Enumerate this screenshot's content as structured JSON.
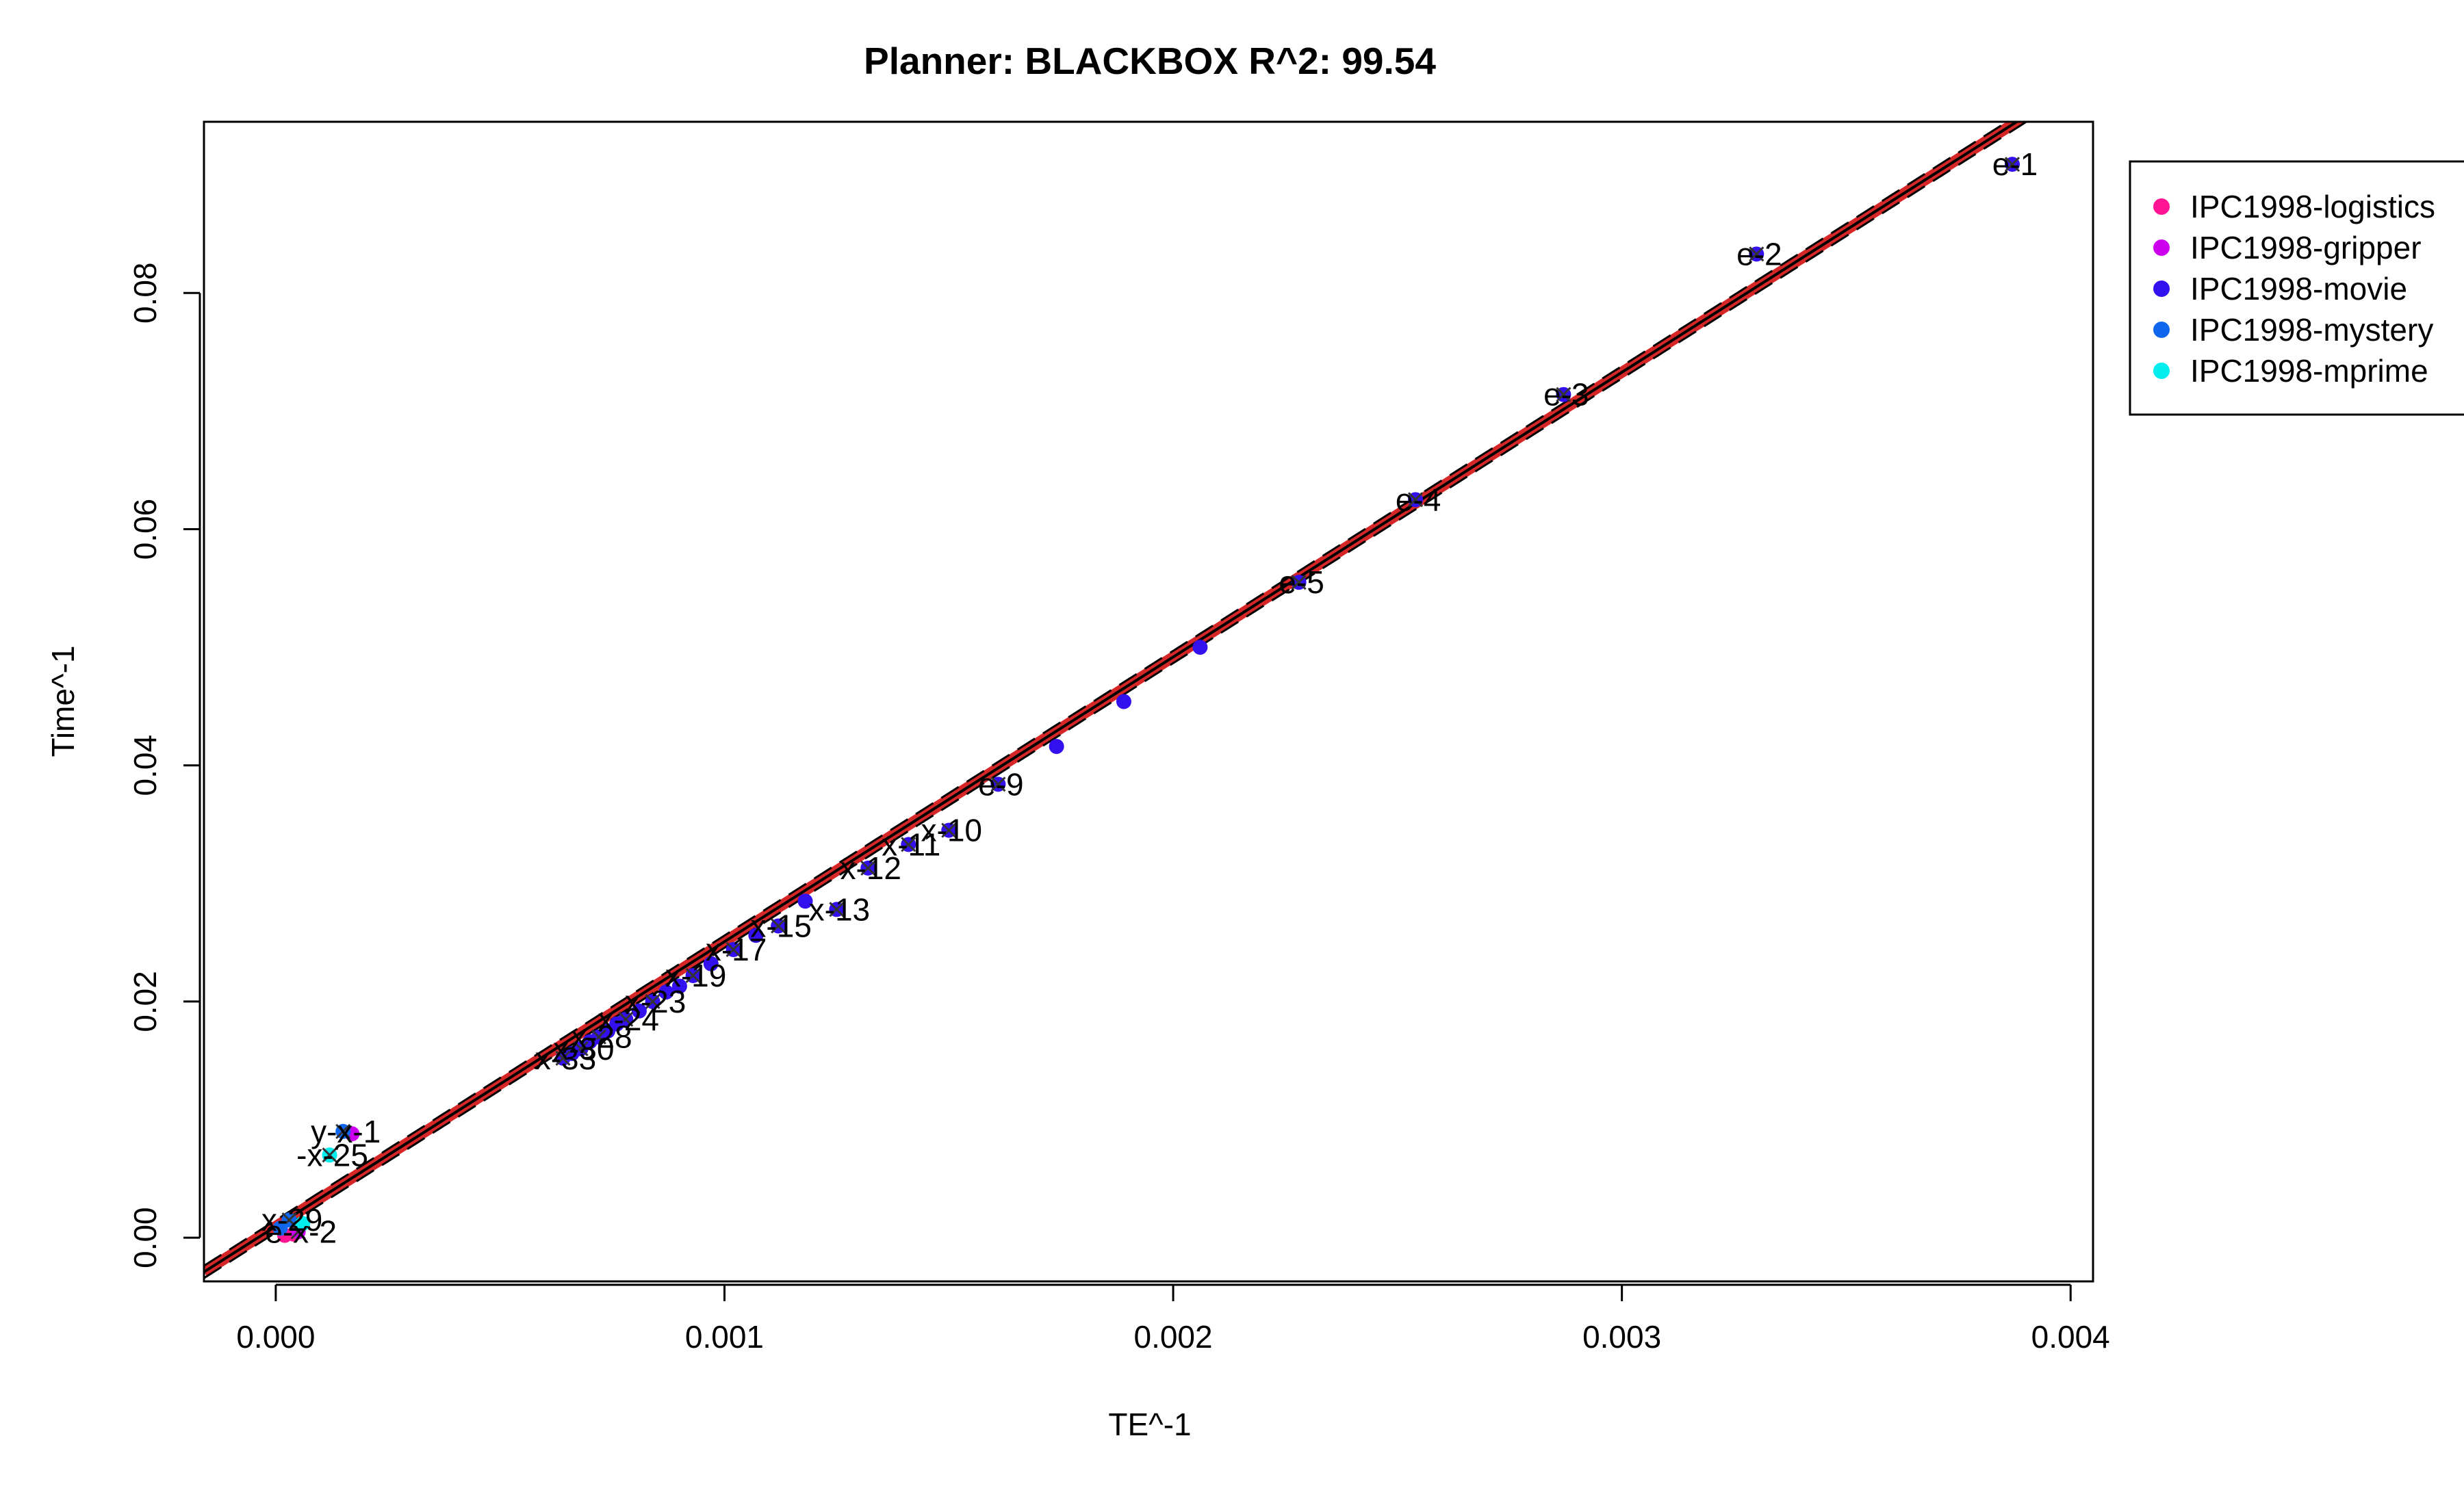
{
  "chart_data": {
    "type": "scatter",
    "title": "Planner: BLACKBOX R^2: 99.54",
    "xlabel": "TE^-1",
    "ylabel": "Time^-1",
    "xlim": [
      -0.00016,
      0.00405
    ],
    "ylim": [
      -0.0037,
      0.0945
    ],
    "xticks": [
      0.0,
      0.001,
      0.002,
      0.003,
      0.004
    ],
    "xtick_labels": [
      "0.000",
      "0.001",
      "0.002",
      "0.003",
      "0.004"
    ],
    "yticks": [
      0.0,
      0.02,
      0.04,
      0.06,
      0.08
    ],
    "ytick_labels": [
      "0.00",
      "0.02",
      "0.04",
      "0.06",
      "0.08"
    ],
    "legend_position": "top-right (outside plot)",
    "fit_line": {
      "x": [
        -0.00016,
        0.00405
      ],
      "y": [
        -0.0029,
        0.0986
      ],
      "band_color": "#d62728",
      "line_color": "#000000"
    },
    "series": [
      {
        "name": "IPC1998-logistics",
        "color": "#ff1493",
        "points": [
          {
            "x": 2e-05,
            "y": 0.0002,
            "label": ""
          },
          {
            "x": 4e-05,
            "y": 0.0003,
            "label": ""
          }
        ]
      },
      {
        "name": "IPC1998-gripper",
        "color": "#cc00ee",
        "points": [
          {
            "x": 0.00017,
            "y": 0.0088,
            "label": ""
          },
          {
            "x": 5e-05,
            "y": 0.0005,
            "label": "e-x-2"
          }
        ]
      },
      {
        "name": "IPC1998-movie",
        "color": "#3311ee",
        "points": [
          {
            "x": 0.00387,
            "y": 0.0909,
            "label": "e-1"
          },
          {
            "x": 0.0033,
            "y": 0.0833,
            "label": "e-2"
          },
          {
            "x": 0.00287,
            "y": 0.0714,
            "label": "e-3"
          },
          {
            "x": 0.00254,
            "y": 0.0625,
            "label": "e-4"
          },
          {
            "x": 0.00228,
            "y": 0.0555,
            "label": "e-5"
          },
          {
            "x": 0.00206,
            "y": 0.05,
            "label": ""
          },
          {
            "x": 0.00189,
            "y": 0.0454,
            "label": ""
          },
          {
            "x": 0.00174,
            "y": 0.0416,
            "label": ""
          },
          {
            "x": 0.00161,
            "y": 0.0384,
            "label": "e-9"
          },
          {
            "x": 0.0015,
            "y": 0.0345,
            "label": "x-10"
          },
          {
            "x": 0.00141,
            "y": 0.0333,
            "label": "x-11"
          },
          {
            "x": 0.00132,
            "y": 0.0313,
            "label": "x-12"
          },
          {
            "x": 0.00125,
            "y": 0.0278,
            "label": "x-13"
          },
          {
            "x": 0.00118,
            "y": 0.0285,
            "label": ""
          },
          {
            "x": 0.00112,
            "y": 0.0264,
            "label": "x-15"
          },
          {
            "x": 0.00107,
            "y": 0.0256,
            "label": ""
          },
          {
            "x": 0.00102,
            "y": 0.0244,
            "label": "x-17"
          },
          {
            "x": 0.00097,
            "y": 0.0232,
            "label": ""
          },
          {
            "x": 0.00093,
            "y": 0.0222,
            "label": "x-19"
          },
          {
            "x": 0.0009,
            "y": 0.0213,
            "label": ""
          },
          {
            "x": 0.00087,
            "y": 0.0208,
            "label": ""
          },
          {
            "x": 0.00084,
            "y": 0.02,
            "label": "x-23"
          },
          {
            "x": 0.00081,
            "y": 0.0192,
            "label": ""
          },
          {
            "x": 0.00078,
            "y": 0.0185,
            "label": "x-24"
          },
          {
            "x": 0.00076,
            "y": 0.0181,
            "label": ""
          },
          {
            "x": 0.00074,
            "y": 0.0175,
            "label": ""
          },
          {
            "x": 0.00072,
            "y": 0.017,
            "label": "x-28"
          },
          {
            "x": 0.0007,
            "y": 0.0166,
            "label": ""
          },
          {
            "x": 0.00068,
            "y": 0.016,
            "label": "x-30"
          },
          {
            "x": 0.00066,
            "y": 0.0156,
            "label": ""
          },
          {
            "x": 0.00064,
            "y": 0.0152,
            "label": "x-33"
          }
        ]
      },
      {
        "name": "IPC1998-mystery",
        "color": "#1166ee",
        "points": [
          {
            "x": 0.00015,
            "y": 0.009,
            "label": "y-x-1"
          },
          {
            "x": 3e-05,
            "y": 0.0015,
            "label": "x-29"
          },
          {
            "x": 1e-05,
            "y": 0.0008,
            "label": ""
          }
        ]
      },
      {
        "name": "IPC1998-mprime",
        "color": "#00eeee",
        "points": [
          {
            "x": 0.00012,
            "y": 0.007,
            "label": "-x-25"
          },
          {
            "x": 6e-05,
            "y": 0.0012,
            "label": ""
          }
        ]
      }
    ]
  }
}
